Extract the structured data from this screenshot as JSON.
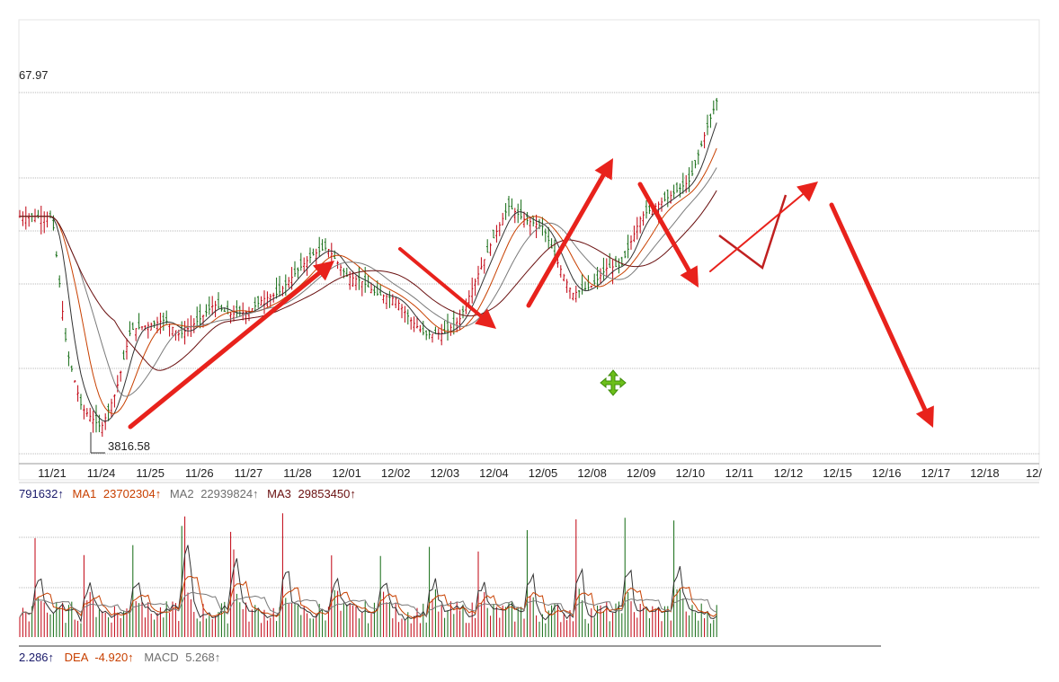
{
  "chart_data": [
    {
      "type": "candlestick",
      "title": "",
      "price_top_label": "67.97",
      "low_marker_label": "3816.58",
      "x_labels": [
        "11/21",
        "11/24",
        "11/25",
        "11/26",
        "11/27",
        "11/28",
        "12/01",
        "12/02",
        "12/03",
        "12/04",
        "12/05",
        "12/08",
        "12/09",
        "12/10",
        "12/11",
        "12/12",
        "12/15",
        "12/16",
        "12/17",
        "12/18",
        "12/"
      ],
      "price_series_approx": {
        "x_index": [
          0.0,
          0.3,
          0.6,
          1.0,
          1.3,
          1.6,
          2.0,
          2.3,
          2.6,
          3.0,
          3.3,
          3.6,
          4.0,
          4.3,
          4.6,
          5.0,
          5.3,
          5.6,
          6.0,
          6.3,
          6.6,
          7.0,
          7.3,
          7.6,
          8.0,
          8.3,
          8.6,
          9.0,
          9.3,
          9.6,
          10.0,
          10.3,
          10.6,
          11.0,
          11.3,
          11.6,
          12.0,
          12.3,
          12.6,
          13.0,
          13.3,
          13.6
        ],
        "close": [
          4260,
          4000,
          3890,
          3850,
          3920,
          4040,
          4050,
          4060,
          4030,
          4060,
          4090,
          4070,
          4075,
          4100,
          4110,
          4155,
          4185,
          4200,
          4145,
          4135,
          4110,
          4100,
          4060,
          4030,
          4035,
          4060,
          4130,
          4220,
          4280,
          4255,
          4240,
          4170,
          4110,
          4125,
          4160,
          4165,
          4260,
          4280,
          4300,
          4330,
          4420,
          4500
        ]
      },
      "annotations": [
        "uptrend-arrow",
        "downtrend-arrow",
        "uptrend-arrow",
        "downtrend-arrow",
        "zigzag-projection",
        "downtrend-projection-arrow"
      ]
    },
    {
      "type": "bar",
      "title": "",
      "header": {
        "vol_value": "791632↑",
        "ma1_label": "MA1",
        "ma1_value": "23702304↑",
        "ma2_label": "MA2",
        "ma2_value": "22939824↑",
        "ma3_label": "MA3",
        "ma3_value": "29853450↑"
      }
    },
    {
      "type": "line",
      "title": "",
      "header": {
        "diff_value": "2.286↑",
        "dea_label": "DEA",
        "dea_value": "-4.920↑",
        "macd_label": "MACD",
        "macd_value": "5.268↑"
      }
    }
  ],
  "colors": {
    "up": "#c0000f",
    "down": "#106a10",
    "ma1": "#c84000",
    "ma2": "#7a7a7a",
    "ma3": "#6a1010",
    "arrow": "#e8221c",
    "grid": "#b9b9b9",
    "cross_icon": "#6cbf1a"
  }
}
